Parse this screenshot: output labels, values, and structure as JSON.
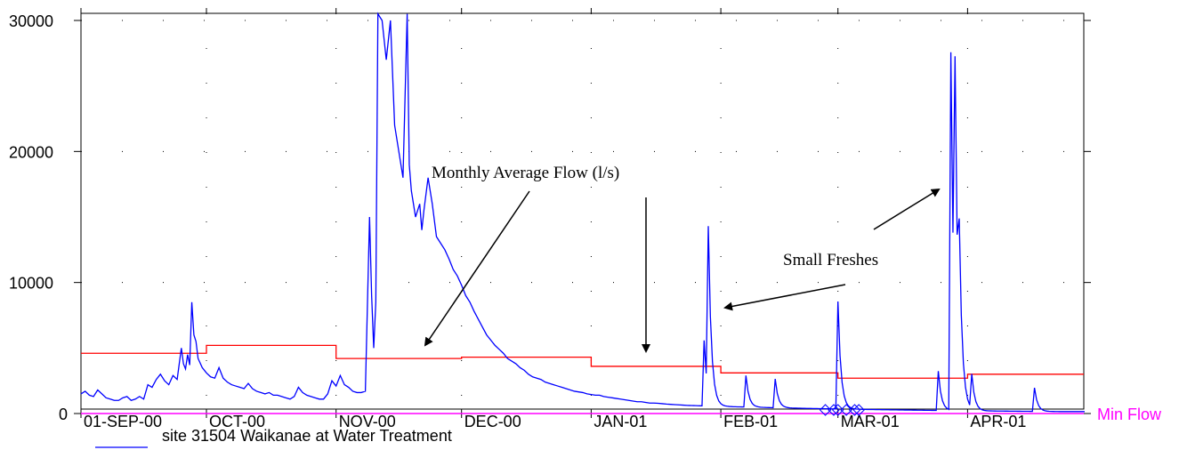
{
  "chart_data": {
    "type": "line",
    "title": "",
    "xlabel": "",
    "ylabel": "",
    "ylim": [
      0,
      30000
    ],
    "y_ticks": [
      {
        "value": 30000,
        "label": "30000"
      },
      {
        "value": 20000,
        "label": "20000"
      },
      {
        "value": 10000,
        "label": "10000"
      },
      {
        "value": 0,
        "label": "0"
      }
    ],
    "x_ticks": [
      {
        "day": 0,
        "label": "01-SEP-00"
      },
      {
        "day": 30,
        "label": "OCT-00"
      },
      {
        "day": 61,
        "label": "NOV-00"
      },
      {
        "day": 91,
        "label": "DEC-00"
      },
      {
        "day": 122,
        "label": "JAN-01"
      },
      {
        "day": 153,
        "label": "FEB-01"
      },
      {
        "day": 181,
        "label": "MAR-01"
      },
      {
        "day": 212,
        "label": "APR-01"
      }
    ],
    "xlim_days": [
      0,
      240
    ],
    "grid": "dotted",
    "series": [
      {
        "name": "site 31504 Waikanae at Water Treatment",
        "color": "#0000ff",
        "points": [
          [
            0,
            1500
          ],
          [
            1,
            1700
          ],
          [
            2,
            1400
          ],
          [
            3,
            1300
          ],
          [
            4,
            1800
          ],
          [
            5,
            1500
          ],
          [
            6,
            1200
          ],
          [
            7,
            1100
          ],
          [
            8,
            1000
          ],
          [
            9,
            1000
          ],
          [
            10,
            1200
          ],
          [
            11,
            1300
          ],
          [
            12,
            1000
          ],
          [
            13,
            1100
          ],
          [
            14,
            1300
          ],
          [
            15,
            1100
          ],
          [
            16,
            2200
          ],
          [
            17,
            2000
          ],
          [
            18,
            2600
          ],
          [
            19,
            3000
          ],
          [
            20,
            2500
          ],
          [
            21,
            2200
          ],
          [
            22,
            2900
          ],
          [
            23,
            2600
          ],
          [
            24,
            5000
          ],
          [
            24.5,
            3800
          ],
          [
            25,
            3400
          ],
          [
            25.5,
            4500
          ],
          [
            26,
            3700
          ],
          [
            26.5,
            8500
          ],
          [
            27,
            6000
          ],
          [
            27.5,
            5500
          ],
          [
            28,
            4200
          ],
          [
            29,
            3500
          ],
          [
            30,
            3100
          ],
          [
            31,
            2800
          ],
          [
            32,
            2700
          ],
          [
            33,
            3500
          ],
          [
            34,
            2700
          ],
          [
            35,
            2400
          ],
          [
            36,
            2200
          ],
          [
            37,
            2100
          ],
          [
            38,
            2000
          ],
          [
            39,
            1900
          ],
          [
            40,
            2300
          ],
          [
            41,
            1900
          ],
          [
            42,
            1700
          ],
          [
            43,
            1600
          ],
          [
            44,
            1500
          ],
          [
            45,
            1600
          ],
          [
            46,
            1400
          ],
          [
            47,
            1400
          ],
          [
            48,
            1300
          ],
          [
            49,
            1200
          ],
          [
            50,
            1100
          ],
          [
            51,
            1300
          ],
          [
            52,
            2000
          ],
          [
            53,
            1600
          ],
          [
            54,
            1400
          ],
          [
            55,
            1300
          ],
          [
            56,
            1200
          ],
          [
            57,
            1100
          ],
          [
            58,
            1100
          ],
          [
            59,
            1500
          ],
          [
            60,
            2500
          ],
          [
            61,
            2100
          ],
          [
            62,
            2900
          ],
          [
            63,
            2200
          ],
          [
            64,
            2000
          ],
          [
            65,
            1700
          ],
          [
            66,
            1600
          ],
          [
            67,
            1600
          ],
          [
            68,
            1700
          ],
          [
            69,
            15000
          ],
          [
            69.5,
            9000
          ],
          [
            70,
            5000
          ],
          [
            70.5,
            8500
          ],
          [
            71,
            30500
          ],
          [
            72,
            30000
          ],
          [
            73,
            27000
          ],
          [
            74,
            30000
          ],
          [
            75,
            22000
          ],
          [
            76,
            20000
          ],
          [
            77,
            18000
          ],
          [
            78,
            30500
          ],
          [
            78.5,
            19000
          ],
          [
            79,
            17000
          ],
          [
            80,
            15000
          ],
          [
            81,
            16000
          ],
          [
            81.5,
            14000
          ],
          [
            82,
            15500
          ],
          [
            83,
            18000
          ],
          [
            84,
            16000
          ],
          [
            85,
            13500
          ],
          [
            86,
            13000
          ],
          [
            87,
            12500
          ],
          [
            88,
            11800
          ],
          [
            89,
            11000
          ],
          [
            90,
            10500
          ],
          [
            91,
            9800
          ],
          [
            92,
            9000
          ],
          [
            93,
            8500
          ],
          [
            94,
            7800
          ],
          [
            95,
            7200
          ],
          [
            96,
            6600
          ],
          [
            97,
            6000
          ],
          [
            98,
            5600
          ],
          [
            99,
            5200
          ],
          [
            100,
            4900
          ],
          [
            101,
            4600
          ],
          [
            102,
            4200
          ],
          [
            103,
            4000
          ],
          [
            104,
            3800
          ],
          [
            105,
            3500
          ],
          [
            106,
            3300
          ],
          [
            107,
            3000
          ],
          [
            108,
            2800
          ],
          [
            109,
            2700
          ],
          [
            110,
            2600
          ],
          [
            111,
            2400
          ],
          [
            112,
            2300
          ],
          [
            113,
            2200
          ],
          [
            114,
            2100
          ],
          [
            115,
            2000
          ],
          [
            116,
            1900
          ],
          [
            117,
            1800
          ],
          [
            118,
            1700
          ],
          [
            119,
            1650
          ],
          [
            120,
            1600
          ],
          [
            121,
            1500
          ],
          [
            122,
            1450
          ],
          [
            123,
            1400
          ],
          [
            124,
            1400
          ],
          [
            125,
            1300
          ],
          [
            126,
            1250
          ],
          [
            127,
            1200
          ],
          [
            128,
            1150
          ],
          [
            129,
            1100
          ],
          [
            130,
            1050
          ],
          [
            131,
            1000
          ],
          [
            132,
            950
          ],
          [
            133,
            900
          ],
          [
            134,
            900
          ],
          [
            135,
            850
          ],
          [
            136,
            800
          ],
          [
            137,
            800
          ],
          [
            138,
            780
          ],
          [
            139,
            750
          ],
          [
            140,
            720
          ],
          [
            141,
            700
          ],
          [
            142,
            680
          ],
          [
            143,
            660
          ],
          [
            144,
            640
          ]
        ]
      },
      {
        "name": "Monthly Average Flow (l/s)",
        "color": "#ff0000",
        "steps": [
          {
            "start": 0,
            "end": 30,
            "value": 4600
          },
          {
            "start": 30,
            "end": 61,
            "value": 5200
          },
          {
            "start": 61,
            "end": 91,
            "value": 4200
          },
          {
            "start": 91,
            "end": 122,
            "value": 4300
          },
          {
            "start": 122,
            "end": 153,
            "value": 3600
          },
          {
            "start": 153,
            "end": 181,
            "value": 3100
          },
          {
            "start": 181,
            "end": 212,
            "value": 2700
          },
          {
            "start": 212,
            "end": 240,
            "value": 3000
          }
        ]
      },
      {
        "name": "Min Flow",
        "color": "#ff00ff",
        "value": 0
      }
    ],
    "annotations": [
      {
        "text": "Monthly Average Flow (l/s)"
      },
      {
        "text": "Small Freshes"
      }
    ],
    "legend": {
      "text": "site 31504 Waikanae at Water Treatment",
      "placement": "bottom-left",
      "color": "#0000ff"
    },
    "min_flow_label": "Min Flow",
    "min_flow_color": "#ff00ff",
    "markers": {
      "shape": "diamond",
      "color": "#0000ff",
      "days": [
        178,
        180,
        181,
        183,
        185,
        186
      ]
    }
  }
}
